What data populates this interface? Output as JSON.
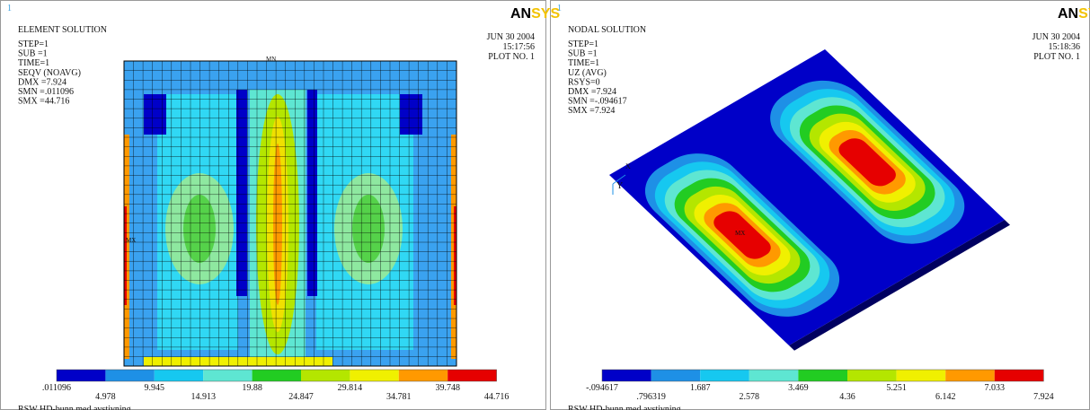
{
  "panels": [
    {
      "window": "1",
      "title": "ELEMENT SOLUTION",
      "info": [
        "STEP=1",
        "SUB =1",
        "TIME=1",
        "SEQV     (NOAVG)",
        "DMX =7.924",
        "SMN =.011096",
        "SMX =44.716"
      ],
      "date": "JUN 30 2004",
      "time": "15:17:56",
      "plot": "PLOT NO.   1",
      "logo_an": "AN",
      "logo_sys": "SYS",
      "markers": [
        "MN",
        "MX"
      ],
      "legend": [
        ".011096",
        "4.978",
        "9.945",
        "14.913",
        "19.88",
        "24.847",
        "29.814",
        "34.781",
        "39.748",
        "44.716"
      ],
      "footer": "RSW HD-bunn med avstivning"
    },
    {
      "window": "1",
      "title": "NODAL SOLUTION",
      "info": [
        "STEP=1",
        "SUB =1",
        "TIME=1",
        "UZ       (AVG)",
        "RSYS=0",
        "DMX =7.924",
        "SMN =-.094617",
        "SMX =7.924"
      ],
      "date": "JUN 30 2004",
      "time": "15:18:36",
      "plot": "PLOT NO.   1",
      "logo_an": "AN",
      "logo_sys": "SYS",
      "markers": [
        "MX"
      ],
      "triad": [
        "X",
        "Y"
      ],
      "legend": [
        "-.094617",
        ".796319",
        "1.687",
        "2.578",
        "3.469",
        "4.36",
        "5.251",
        "6.142",
        "7.033",
        "7.924"
      ],
      "footer": "RSW HD-bunn med avstivning"
    }
  ]
}
